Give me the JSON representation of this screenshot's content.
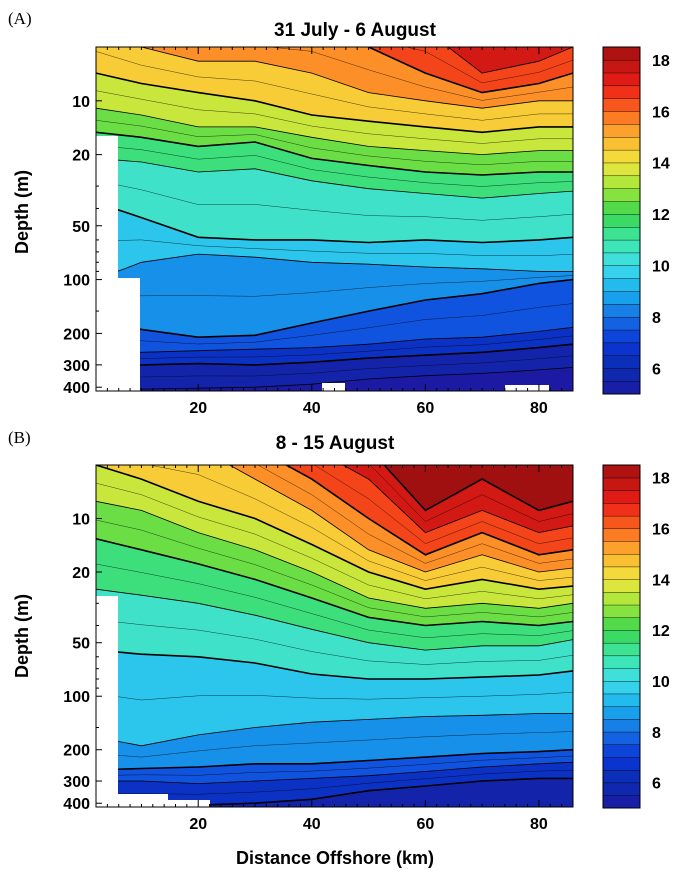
{
  "chart_data": [
    {
      "type": "heatmap",
      "panel_label": "(A)",
      "title": "31 July - 6 August",
      "xlabel": "",
      "ylabel": "Depth (m)",
      "xlim": [
        2,
        86
      ],
      "ylim": [
        5,
        420
      ],
      "y_scale": "log",
      "x_ticks": [
        20,
        40,
        60,
        80
      ],
      "y_ticks": [
        10,
        20,
        50,
        100,
        200,
        300,
        400
      ],
      "colorbar": {
        "range": [
          5,
          18.5
        ],
        "ticks": [
          6,
          8,
          10,
          12,
          14,
          16,
          18
        ]
      },
      "isotherm_depths": {
        "x": [
          2,
          10,
          20,
          30,
          40,
          50,
          60,
          70,
          80,
          86
        ],
        "series": [
          {
            "temp": 17,
            "depth": [
              4,
              4,
              4,
              4,
              4,
              4,
              4,
              7,
              6,
              5
            ]
          },
          {
            "temp": 16,
            "depth": [
              4,
              4,
              4,
              4,
              4,
              5,
              7,
              9,
              8,
              7
            ]
          },
          {
            "temp": 15,
            "depth": [
              4,
              5,
              6,
              6,
              7,
              9,
              10,
              11,
              10,
              10
            ]
          },
          {
            "temp": 14,
            "depth": [
              7,
              8,
              9,
              10,
              12,
              13,
              14,
              15,
              14,
              14
            ]
          },
          {
            "temp": 13,
            "depth": [
              11,
              12,
              14,
              14,
              16,
              18,
              19,
              20,
              19,
              19
            ]
          },
          {
            "temp": 12,
            "depth": [
              15,
              16,
              18,
              17,
              21,
              23,
              25,
              26,
              25,
              25
            ]
          },
          {
            "temp": 11,
            "depth": [
              21,
              22,
              25,
              24,
              28,
              31,
              33,
              35,
              33,
              32
            ]
          },
          {
            "temp": 10,
            "depth": [
              37,
              45,
              58,
              60,
              60,
              62,
              60,
              62,
              60,
              58
            ]
          },
          {
            "temp": 9,
            "depth": [
              100,
              80,
              72,
              75,
              80,
              82,
              85,
              87,
              90,
              90
            ]
          },
          {
            "temp": 8,
            "depth": [
              175,
              190,
              210,
              205,
              175,
              150,
              130,
              120,
              105,
              100
            ]
          },
          {
            "temp": 7,
            "depth": [
              245,
              255,
              250,
              245,
              240,
              230,
              215,
              210,
              195,
              185
            ]
          },
          {
            "temp": 6,
            "depth": [
              310,
              300,
              295,
              300,
              290,
              275,
              265,
              255,
              240,
              230
            ]
          },
          {
            "temp": 5,
            "depth": [
              420,
              410,
              405,
              400,
              385,
              360,
              345,
              335,
              320,
              310
            ]
          }
        ]
      }
    },
    {
      "type": "heatmap",
      "panel_label": "(B)",
      "title": "8 - 15 August",
      "xlabel": "Distance Offshore (km)",
      "ylabel": "Depth (m)",
      "xlim": [
        2,
        86
      ],
      "ylim": [
        5,
        420
      ],
      "y_scale": "log",
      "x_ticks": [
        20,
        40,
        60,
        80
      ],
      "y_ticks": [
        10,
        20,
        50,
        100,
        200,
        300,
        400
      ],
      "colorbar": {
        "range": [
          5,
          18.5
        ],
        "ticks": [
          6,
          8,
          10,
          12,
          14,
          16,
          18
        ]
      },
      "isotherm_depths": {
        "x": [
          2,
          10,
          20,
          30,
          40,
          50,
          60,
          70,
          80,
          86
        ],
        "series": [
          {
            "temp": 18,
            "depth": [
              4,
              4,
              4,
              4,
              4,
              4,
              9,
              6,
              9,
              8
            ]
          },
          {
            "temp": 17,
            "depth": [
              4,
              4,
              4,
              4,
              4,
              6,
              12,
              9,
              12,
              11
            ]
          },
          {
            "temp": 16,
            "depth": [
              4,
              4,
              4,
              4,
              6,
              10,
              16,
              12,
              16,
              15
            ]
          },
          {
            "temp": 15,
            "depth": [
              4,
              4,
              4,
              6,
              9,
              15,
              20,
              16,
              20,
              19
            ]
          },
          {
            "temp": 14,
            "depth": [
              5,
              6,
              8,
              10,
              14,
              20,
              25,
              22,
              25,
              24
            ]
          },
          {
            "temp": 13,
            "depth": [
              8,
              9,
              12,
              15,
              20,
              28,
              32,
              30,
              32,
              30
            ]
          },
          {
            "temp": 12,
            "depth": [
              13,
              15,
              18,
              22,
              28,
              36,
              40,
              38,
              40,
              38
            ]
          },
          {
            "temp": 11,
            "depth": [
              25,
              27,
              30,
              35,
              42,
              50,
              55,
              52,
              52,
              48
            ]
          },
          {
            "temp": 10,
            "depth": [
              55,
              58,
              60,
              65,
              75,
              80,
              80,
              78,
              76,
              72
            ]
          },
          {
            "temp": 9,
            "depth": [
              170,
              190,
              165,
              150,
              140,
              135,
              130,
              128,
              125,
              125
            ]
          },
          {
            "temp": 8,
            "depth": [
              260,
              255,
              250,
              240,
              240,
              230,
              220,
              210,
              205,
              200
            ]
          },
          {
            "temp": 7,
            "depth": [
              300,
              300,
              310,
              300,
              290,
              280,
              265,
              250,
              240,
              235
            ]
          },
          {
            "temp": 6,
            "depth": [
              420,
              415,
              410,
              400,
              380,
              340,
              320,
              300,
              290,
              290
            ]
          }
        ]
      }
    }
  ]
}
